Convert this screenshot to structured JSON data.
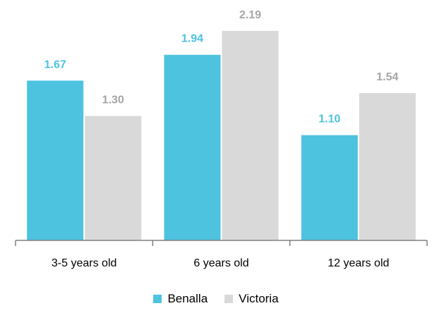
{
  "chart_data": {
    "type": "bar",
    "categories": [
      "3-5 years old",
      "6 years old",
      "12 years old"
    ],
    "series": [
      {
        "name": "Benalla",
        "values": [
          1.67,
          1.94,
          1.1
        ],
        "color": "#4dc3e0"
      },
      {
        "name": "Victoria",
        "values": [
          1.3,
          2.19,
          1.54
        ],
        "color": "#d9d9d9"
      }
    ],
    "value_labels": {
      "Benalla": [
        "1.67",
        "1.94",
        "1.10"
      ],
      "Victoria": [
        "1.30",
        "2.19",
        "1.54"
      ]
    },
    "label_colors": {
      "Benalla": "#4dc3e0",
      "Victoria": "#a6a6a6"
    },
    "ylim": [
      0,
      2.3
    ],
    "grid": false,
    "legend_position": "bottom",
    "title": "",
    "xlabel": "",
    "ylabel": ""
  }
}
